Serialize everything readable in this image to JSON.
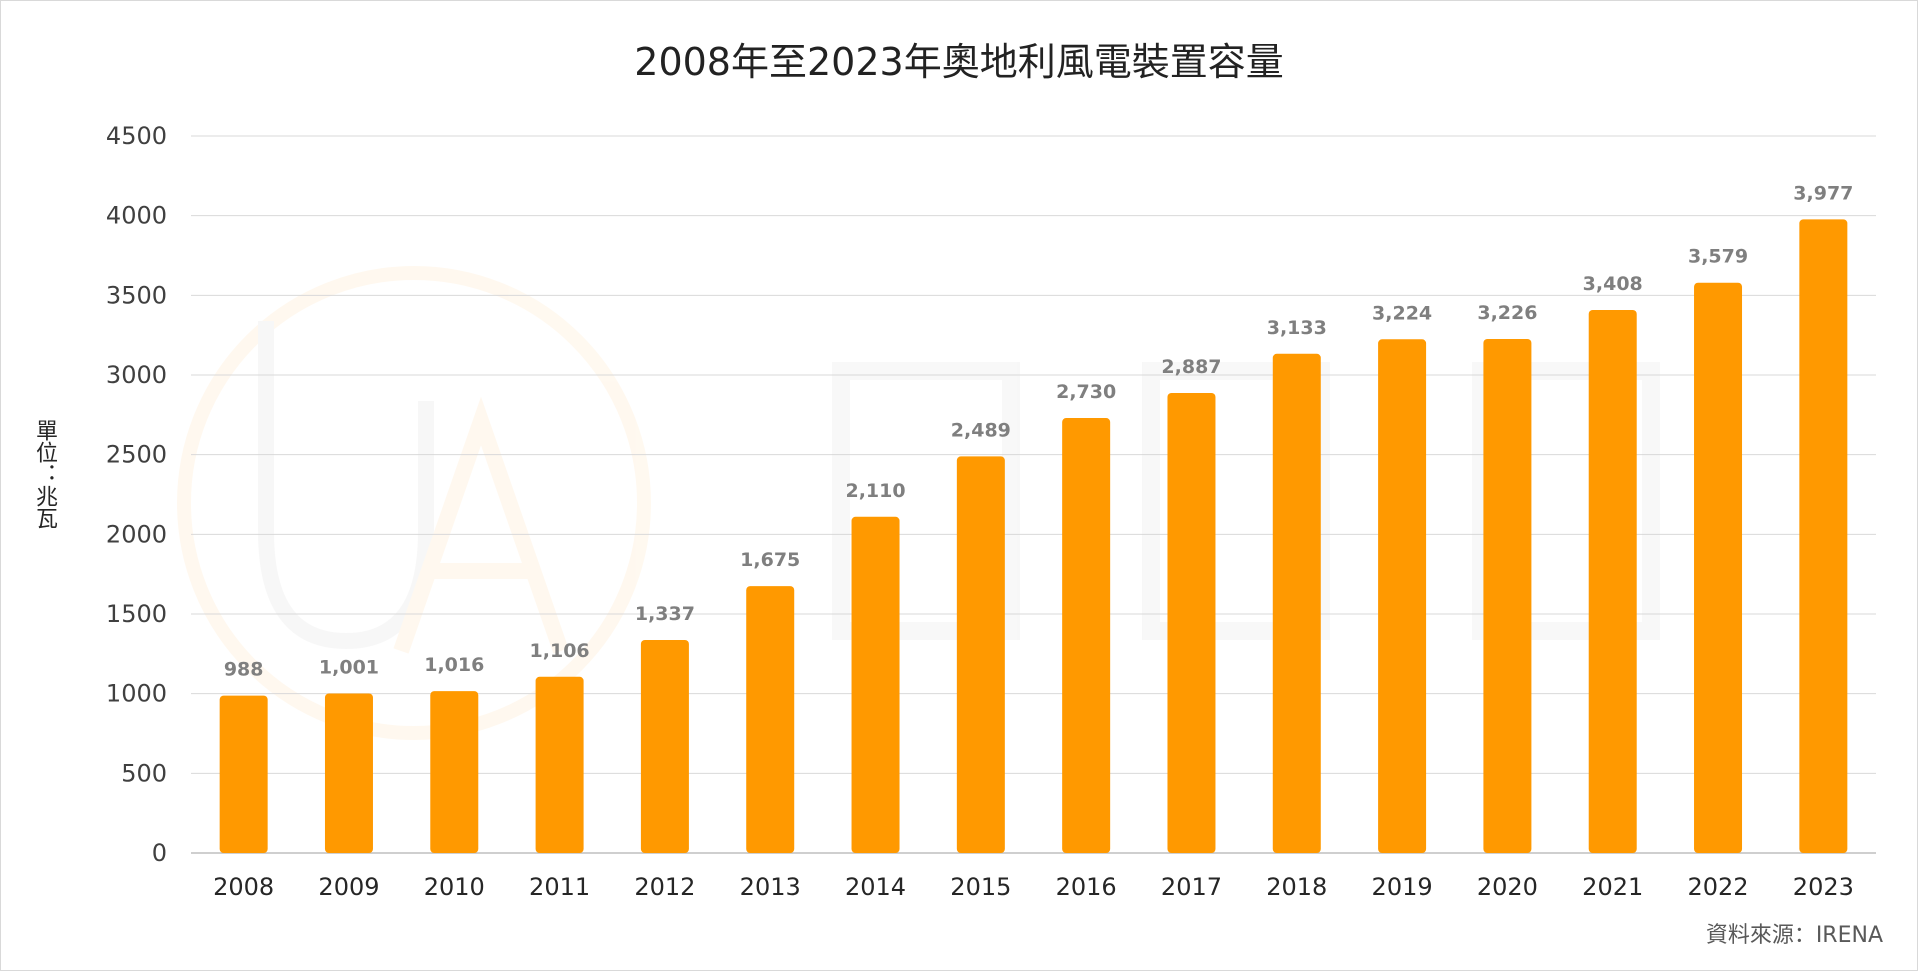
{
  "chart_data": {
    "type": "bar",
    "title": "2008年至2023年奧地利風電裝置容量",
    "ylabel": "單位：兆瓦",
    "xlabel": "",
    "categories": [
      "2008",
      "2009",
      "2010",
      "2011",
      "2012",
      "2013",
      "2014",
      "2015",
      "2016",
      "2017",
      "2018",
      "2019",
      "2020",
      "2021",
      "2022",
      "2023"
    ],
    "values": [
      988,
      1001,
      1016,
      1106,
      1337,
      1675,
      2110,
      2489,
      2730,
      2887,
      3133,
      3224,
      3226,
      3408,
      3579,
      3977
    ],
    "data_labels": [
      "988",
      "1,001",
      "1,016",
      "1,106",
      "1,337",
      "1,675",
      "2,110",
      "2,489",
      "2,730",
      "2,887",
      "3,133",
      "3,224",
      "3,226",
      "3,408",
      "3,579",
      "3,977"
    ],
    "ylim": [
      0,
      4500
    ],
    "yticks": [
      0,
      500,
      1000,
      1500,
      2000,
      2500,
      3000,
      3500,
      4000,
      4500
    ],
    "grid": true,
    "bar_color": "#ff9900",
    "legend": "none"
  },
  "source": "資料來源：IRENA"
}
